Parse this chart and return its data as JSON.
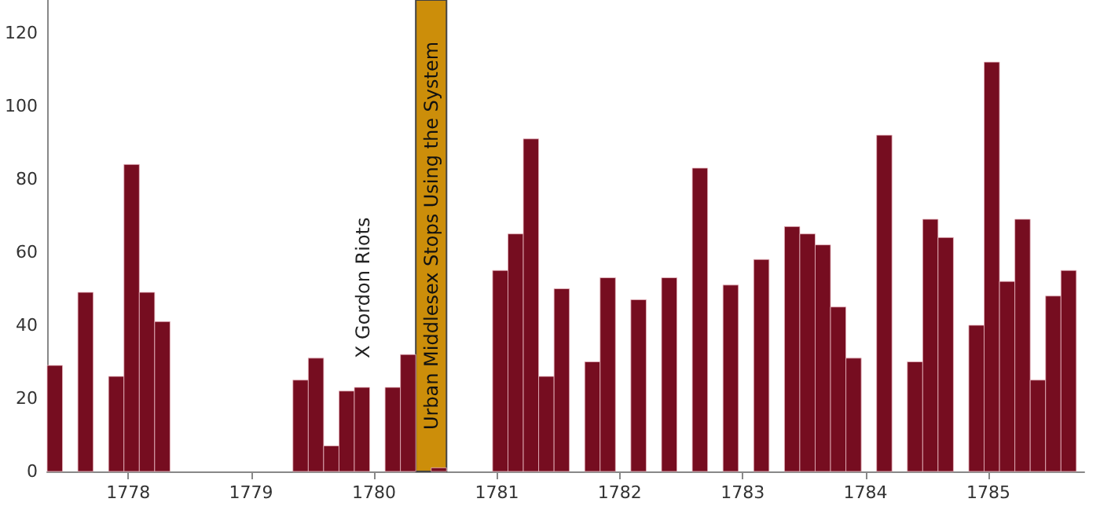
{
  "chart_data": {
    "type": "histogram",
    "color": "#760d20",
    "bins": [
      1777.34,
      1777.465,
      1777.59,
      1777.715,
      1777.84,
      1777.965,
      1778.09,
      1778.215,
      1778.34,
      1778.465,
      1778.59,
      1778.715,
      1778.84,
      1778.965,
      1779.09,
      1779.215,
      1779.34,
      1779.465,
      1779.59,
      1779.715,
      1779.84,
      1779.965,
      1780.09,
      1780.215,
      1780.34,
      1780.465,
      1780.59,
      1780.715,
      1780.84,
      1780.965,
      1781.09,
      1781.215,
      1781.34,
      1781.465,
      1781.59,
      1781.715,
      1781.84,
      1781.965,
      1782.09,
      1782.215,
      1782.34,
      1782.465,
      1782.59,
      1782.715,
      1782.84,
      1782.965,
      1783.09,
      1783.215,
      1783.34,
      1783.465,
      1783.59,
      1783.715,
      1783.84,
      1783.965,
      1784.09,
      1784.215,
      1784.34,
      1784.465,
      1784.59,
      1784.715,
      1784.84,
      1784.965,
      1785.09,
      1785.215,
      1785.34,
      1785.465,
      1785.59,
      1785.715
    ],
    "values": [
      29,
      0,
      49,
      0,
      26,
      84,
      49,
      41,
      0,
      0,
      0,
      0,
      0,
      0,
      0,
      0,
      25,
      31,
      7,
      22,
      23,
      0,
      23,
      32,
      0,
      1,
      0,
      0,
      0,
      55,
      65,
      91,
      26,
      50,
      0,
      30,
      53,
      0,
      47,
      0,
      53,
      0,
      83,
      0,
      51,
      0,
      58,
      0,
      67,
      65,
      62,
      45,
      31,
      0,
      92,
      0,
      30,
      69,
      64,
      0,
      40,
      112,
      52,
      69,
      25,
      48,
      55
    ],
    "xlim": [
      1777.34,
      1785.78
    ],
    "xticks": [
      1778,
      1779,
      1780,
      1781,
      1782,
      1783,
      1784,
      1785
    ],
    "ylim": [
      0,
      129
    ],
    "yticks": [
      0,
      20,
      40,
      60,
      80,
      100,
      120
    ],
    "bands": [
      {
        "axis": "x",
        "from": 1780.34,
        "to": 1780.59,
        "label": "Urban Middlesex Stops Using the System",
        "color": "#cc8e0a"
      }
    ],
    "annotations": [
      "X Gordon Riots"
    ],
    "grid": false
  }
}
